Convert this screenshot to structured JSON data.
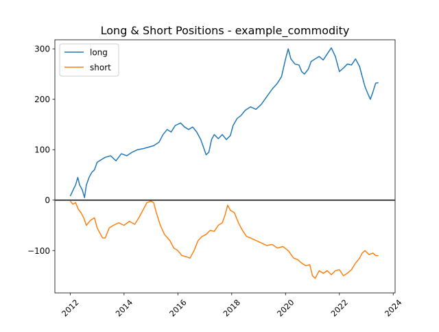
{
  "chart_data": {
    "type": "line",
    "title": "Long & Short Positions - example_commodity",
    "xlabel": "",
    "ylabel": "",
    "xlim": [
      2011.43,
      2024.07
    ],
    "ylim": [
      -184,
      318
    ],
    "x_ticks": [
      2012,
      2014,
      2016,
      2018,
      2020,
      2022,
      2024
    ],
    "x_tick_labels": [
      "2012",
      "2014",
      "2016",
      "2018",
      "2020",
      "2022",
      "2024"
    ],
    "y_ticks": [
      -100,
      0,
      100,
      200,
      300
    ],
    "y_tick_labels": [
      "−100",
      "0",
      "100",
      "200",
      "300"
    ],
    "zero_line": true,
    "grid": false,
    "legend_position": "upper-left",
    "series": [
      {
        "name": "long",
        "color": "#1f77b4",
        "points": [
          [
            2012.0,
            8
          ],
          [
            2012.15,
            25
          ],
          [
            2012.2,
            30
          ],
          [
            2012.28,
            45
          ],
          [
            2012.35,
            30
          ],
          [
            2012.45,
            20
          ],
          [
            2012.53,
            5
          ],
          [
            2012.6,
            30
          ],
          [
            2012.7,
            45
          ],
          [
            2012.8,
            55
          ],
          [
            2012.9,
            60
          ],
          [
            2013.0,
            75
          ],
          [
            2013.15,
            80
          ],
          [
            2013.3,
            85
          ],
          [
            2013.5,
            88
          ],
          [
            2013.7,
            78
          ],
          [
            2013.9,
            92
          ],
          [
            2014.1,
            88
          ],
          [
            2014.3,
            95
          ],
          [
            2014.5,
            100
          ],
          [
            2014.7,
            102
          ],
          [
            2014.9,
            105
          ],
          [
            2015.1,
            108
          ],
          [
            2015.3,
            115
          ],
          [
            2015.45,
            130
          ],
          [
            2015.6,
            140
          ],
          [
            2015.75,
            135
          ],
          [
            2015.9,
            148
          ],
          [
            2016.1,
            153
          ],
          [
            2016.25,
            145
          ],
          [
            2016.4,
            140
          ],
          [
            2016.55,
            145
          ],
          [
            2016.7,
            135
          ],
          [
            2016.85,
            120
          ],
          [
            2016.95,
            105
          ],
          [
            2017.05,
            90
          ],
          [
            2017.15,
            95
          ],
          [
            2017.25,
            120
          ],
          [
            2017.35,
            130
          ],
          [
            2017.5,
            122
          ],
          [
            2017.65,
            130
          ],
          [
            2017.8,
            120
          ],
          [
            2017.95,
            128
          ],
          [
            2018.05,
            148
          ],
          [
            2018.2,
            162
          ],
          [
            2018.35,
            168
          ],
          [
            2018.5,
            178
          ],
          [
            2018.7,
            185
          ],
          [
            2018.9,
            180
          ],
          [
            2019.1,
            190
          ],
          [
            2019.3,
            205
          ],
          [
            2019.5,
            220
          ],
          [
            2019.7,
            232
          ],
          [
            2019.85,
            245
          ],
          [
            2020.0,
            280
          ],
          [
            2020.1,
            300
          ],
          [
            2020.2,
            280
          ],
          [
            2020.35,
            270
          ],
          [
            2020.5,
            268
          ],
          [
            2020.6,
            255
          ],
          [
            2020.7,
            250
          ],
          [
            2020.85,
            260
          ],
          [
            2020.95,
            275
          ],
          [
            2021.1,
            280
          ],
          [
            2021.25,
            285
          ],
          [
            2021.4,
            278
          ],
          [
            2021.55,
            290
          ],
          [
            2021.7,
            302
          ],
          [
            2021.85,
            285
          ],
          [
            2022.0,
            255
          ],
          [
            2022.15,
            262
          ],
          [
            2022.3,
            270
          ],
          [
            2022.45,
            268
          ],
          [
            2022.6,
            280
          ],
          [
            2022.75,
            265
          ],
          [
            2022.85,
            245
          ],
          [
            2022.95,
            225
          ],
          [
            2023.05,
            212
          ],
          [
            2023.15,
            200
          ],
          [
            2023.25,
            215
          ],
          [
            2023.35,
            232
          ],
          [
            2023.45,
            233
          ]
        ]
      },
      {
        "name": "short",
        "color": "#ff7f0e",
        "points": [
          [
            2012.0,
            -2
          ],
          [
            2012.1,
            -8
          ],
          [
            2012.2,
            -5
          ],
          [
            2012.3,
            -18
          ],
          [
            2012.4,
            -25
          ],
          [
            2012.5,
            -35
          ],
          [
            2012.6,
            -50
          ],
          [
            2012.75,
            -40
          ],
          [
            2012.9,
            -35
          ],
          [
            2013.0,
            -55
          ],
          [
            2013.1,
            -65
          ],
          [
            2013.2,
            -75
          ],
          [
            2013.3,
            -75
          ],
          [
            2013.45,
            -55
          ],
          [
            2013.6,
            -50
          ],
          [
            2013.8,
            -45
          ],
          [
            2014.0,
            -50
          ],
          [
            2014.2,
            -42
          ],
          [
            2014.4,
            -48
          ],
          [
            2014.55,
            -35
          ],
          [
            2014.7,
            -20
          ],
          [
            2014.85,
            -5
          ],
          [
            2015.0,
            -2
          ],
          [
            2015.1,
            -5
          ],
          [
            2015.2,
            -25
          ],
          [
            2015.35,
            -50
          ],
          [
            2015.5,
            -68
          ],
          [
            2015.7,
            -80
          ],
          [
            2015.85,
            -95
          ],
          [
            2016.0,
            -100
          ],
          [
            2016.15,
            -110
          ],
          [
            2016.3,
            -112
          ],
          [
            2016.45,
            -115
          ],
          [
            2016.6,
            -100
          ],
          [
            2016.75,
            -80
          ],
          [
            2016.9,
            -72
          ],
          [
            2017.05,
            -68
          ],
          [
            2017.2,
            -60
          ],
          [
            2017.35,
            -62
          ],
          [
            2017.5,
            -50
          ],
          [
            2017.65,
            -45
          ],
          [
            2017.75,
            -30
          ],
          [
            2017.85,
            -10
          ],
          [
            2017.95,
            -20
          ],
          [
            2018.1,
            -25
          ],
          [
            2018.25,
            -45
          ],
          [
            2018.4,
            -60
          ],
          [
            2018.55,
            -72
          ],
          [
            2018.7,
            -75
          ],
          [
            2018.9,
            -80
          ],
          [
            2019.1,
            -85
          ],
          [
            2019.3,
            -90
          ],
          [
            2019.5,
            -88
          ],
          [
            2019.7,
            -95
          ],
          [
            2019.9,
            -92
          ],
          [
            2020.1,
            -100
          ],
          [
            2020.3,
            -115
          ],
          [
            2020.45,
            -118
          ],
          [
            2020.6,
            -125
          ],
          [
            2020.75,
            -130
          ],
          [
            2020.9,
            -128
          ],
          [
            2021.0,
            -150
          ],
          [
            2021.1,
            -155
          ],
          [
            2021.25,
            -140
          ],
          [
            2021.4,
            -145
          ],
          [
            2021.55,
            -140
          ],
          [
            2021.7,
            -148
          ],
          [
            2021.85,
            -140
          ],
          [
            2022.0,
            -138
          ],
          [
            2022.15,
            -150
          ],
          [
            2022.3,
            -145
          ],
          [
            2022.45,
            -138
          ],
          [
            2022.6,
            -125
          ],
          [
            2022.75,
            -115
          ],
          [
            2022.85,
            -105
          ],
          [
            2022.95,
            -100
          ],
          [
            2023.1,
            -108
          ],
          [
            2023.25,
            -105
          ],
          [
            2023.35,
            -110
          ],
          [
            2023.45,
            -110
          ]
        ]
      }
    ]
  }
}
